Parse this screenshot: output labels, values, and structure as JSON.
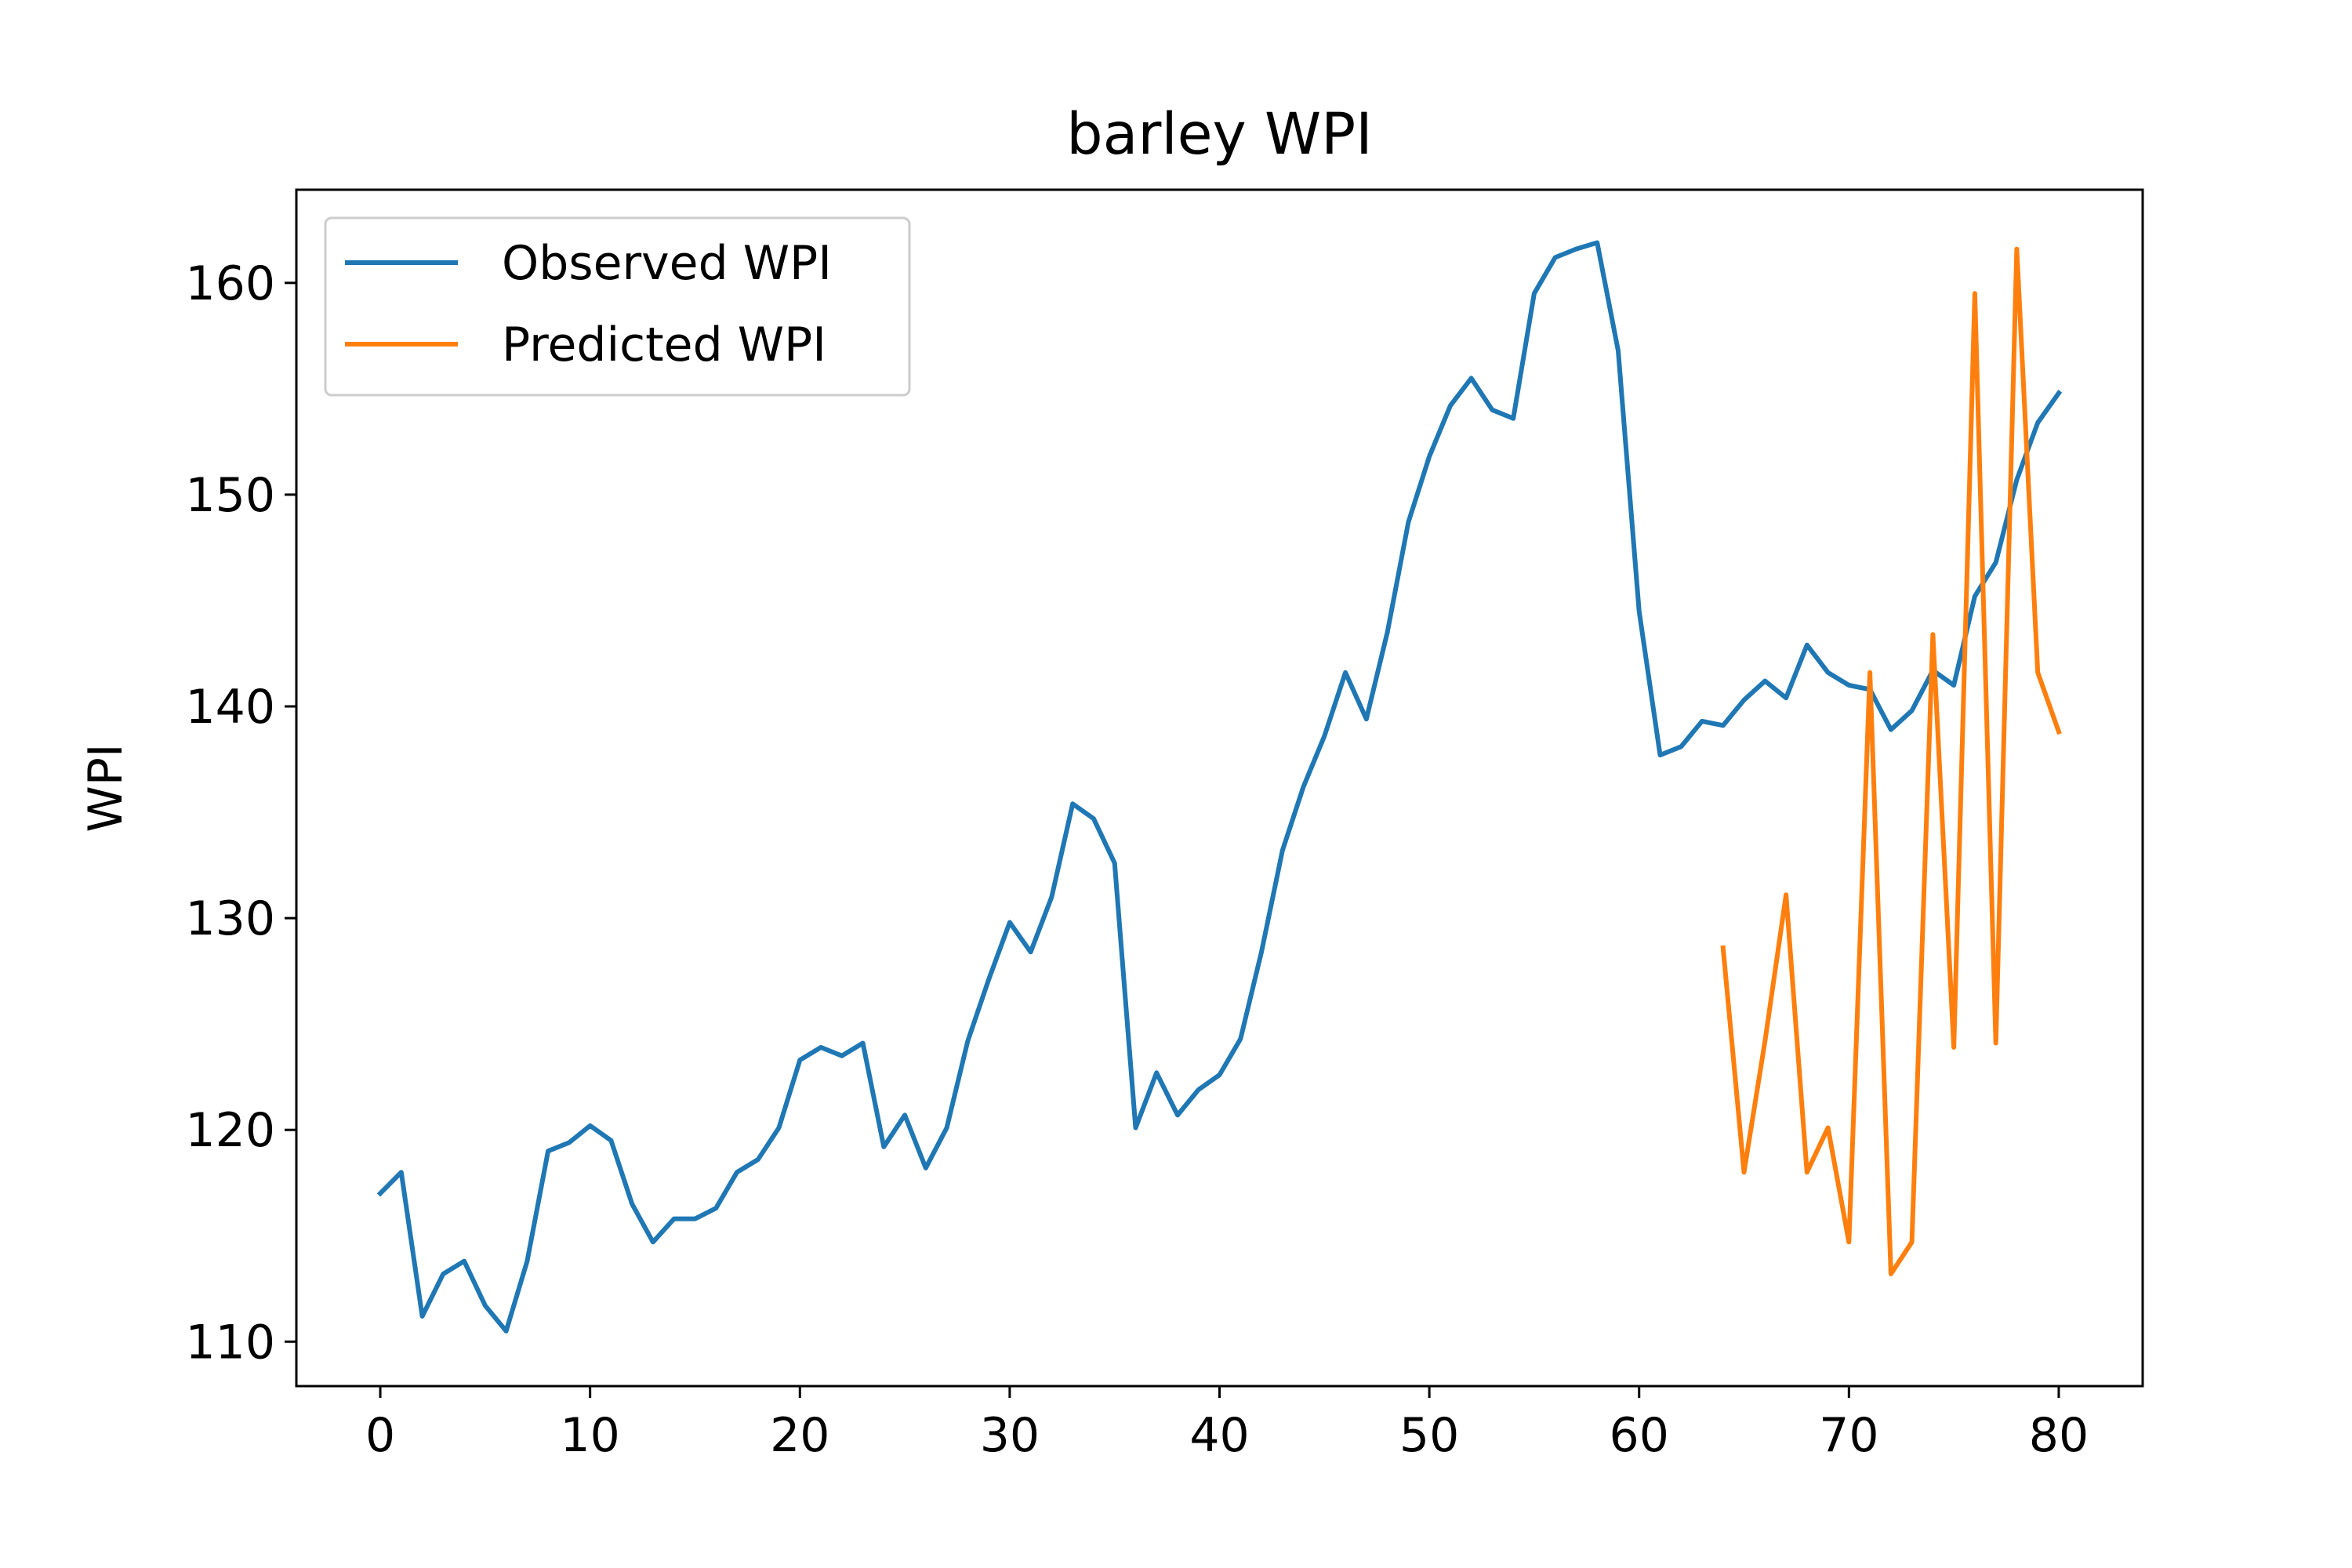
{
  "chart_data": {
    "type": "line",
    "title": "barley WPI",
    "xlabel": "",
    "ylabel": "WPI",
    "xlim": [
      -4,
      84
    ],
    "ylim": [
      107.9,
      164.4
    ],
    "xticks": [
      0,
      10,
      20,
      30,
      40,
      50,
      60,
      70,
      80
    ],
    "yticks": [
      110,
      120,
      130,
      140,
      150,
      160
    ],
    "grid": false,
    "legend_position": "upper left",
    "series": [
      {
        "name": "Observed WPI",
        "color": "#1f77b4",
        "x": [
          0,
          1,
          2,
          3,
          4,
          5,
          6,
          7,
          8,
          9,
          10,
          11,
          12,
          13,
          14,
          15,
          16,
          17,
          18,
          19,
          20,
          21,
          22,
          23,
          24,
          25,
          26,
          27,
          28,
          29,
          30,
          31,
          32,
          33,
          34,
          35,
          36,
          37,
          38,
          39,
          40,
          41,
          42,
          43,
          44,
          45,
          46,
          47,
          48,
          49,
          50,
          51,
          52,
          53,
          54,
          55,
          56,
          57,
          58,
          59,
          60,
          61,
          62,
          63,
          64,
          65,
          66,
          67,
          68,
          69,
          70,
          71,
          72,
          73,
          74,
          75,
          76,
          77,
          78,
          79,
          80
        ],
        "y": [
          117.0,
          118.0,
          111.2,
          113.2,
          113.8,
          111.7,
          110.5,
          113.8,
          119.0,
          119.4,
          120.2,
          119.5,
          116.5,
          114.7,
          115.8,
          115.8,
          116.3,
          118.0,
          118.6,
          120.1,
          123.3,
          123.9,
          123.5,
          124.1,
          119.2,
          120.7,
          118.2,
          120.1,
          124.2,
          127.1,
          129.8,
          128.4,
          131.0,
          135.4,
          134.7,
          132.6,
          120.1,
          122.7,
          120.7,
          121.9,
          122.6,
          124.3,
          128.4,
          133.2,
          136.2,
          138.6,
          141.6,
          139.4,
          143.5,
          148.7,
          151.8,
          154.2,
          155.5,
          154.0,
          153.6,
          159.5,
          161.2,
          161.6,
          161.9,
          156.8,
          144.5,
          137.7,
          138.1,
          139.3,
          139.1,
          140.3,
          141.2,
          140.4,
          142.9,
          141.6,
          141.0,
          140.8,
          138.9,
          139.8,
          141.7,
          141.0,
          145.2,
          146.8,
          150.7,
          153.4,
          154.8
        ]
      },
      {
        "name": "Predicted WPI",
        "color": "#ff7f0e",
        "x": [
          64,
          65,
          66,
          67,
          68,
          69,
          70,
          71,
          72,
          73,
          74,
          75,
          76,
          77,
          78,
          79,
          80
        ],
        "y": [
          128.6,
          118.0,
          124.2,
          131.1,
          118.0,
          120.1,
          114.7,
          141.6,
          113.2,
          114.7,
          143.4,
          123.9,
          159.5,
          124.1,
          161.6,
          141.6,
          138.8
        ]
      }
    ]
  }
}
